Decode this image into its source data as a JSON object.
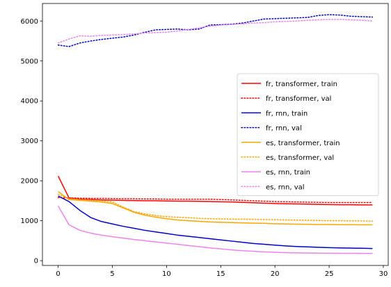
{
  "chart_data": {
    "type": "line",
    "title": "",
    "xlabel": "",
    "ylabel": "",
    "xlim": [
      -1.45,
      30.45
    ],
    "ylim": [
      -120,
      6440
    ],
    "xticks": [
      0,
      5,
      10,
      15,
      20,
      25,
      30
    ],
    "yticks": [
      0,
      1000,
      2000,
      3000,
      4000,
      5000,
      6000
    ],
    "legend_position": "center-right",
    "x": [
      0,
      1,
      2,
      3,
      4,
      5,
      6,
      7,
      8,
      9,
      10,
      11,
      12,
      13,
      14,
      15,
      16,
      17,
      18,
      19,
      20,
      21,
      22,
      23,
      24,
      25,
      26,
      27,
      28,
      29
    ],
    "series": [
      {
        "name": "fr, transformer, train",
        "color": "#ff0000",
        "style": "solid",
        "values": [
          2120,
          1570,
          1540,
          1530,
          1520,
          1515,
          1510,
          1505,
          1500,
          1500,
          1495,
          1490,
          1490,
          1485,
          1480,
          1475,
          1470,
          1460,
          1450,
          1440,
          1430,
          1425,
          1420,
          1415,
          1410,
          1405,
          1400,
          1400,
          1395,
          1395
        ]
      },
      {
        "name": "fr, transformer, val",
        "color": "#ff0000",
        "style": "dotted",
        "values": [
          1580,
          1570,
          1565,
          1560,
          1560,
          1555,
          1550,
          1550,
          1545,
          1545,
          1540,
          1540,
          1540,
          1540,
          1540,
          1530,
          1520,
          1510,
          1500,
          1490,
          1480,
          1475,
          1470,
          1465,
          1460,
          1455,
          1455,
          1455,
          1455,
          1455
        ]
      },
      {
        "name": "fr, rnn, train",
        "color": "#0000cc",
        "style": "solid",
        "values": [
          1620,
          1480,
          1260,
          1080,
          980,
          920,
          860,
          810,
          760,
          720,
          680,
          640,
          610,
          580,
          550,
          520,
          490,
          460,
          430,
          410,
          390,
          370,
          355,
          345,
          335,
          325,
          320,
          315,
          310,
          305
        ]
      },
      {
        "name": "fr, rnn, val",
        "color": "#0000cc",
        "style": "dotted",
        "values": [
          5400,
          5360,
          5450,
          5500,
          5540,
          5570,
          5600,
          5650,
          5720,
          5780,
          5790,
          5800,
          5780,
          5800,
          5900,
          5910,
          5920,
          5950,
          6000,
          6050,
          6060,
          6070,
          6080,
          6090,
          6140,
          6160,
          6150,
          6120,
          6110,
          6100
        ]
      },
      {
        "name": "es, transformer, train",
        "color": "#ffa500",
        "style": "solid",
        "values": [
          1730,
          1530,
          1510,
          1490,
          1470,
          1430,
          1320,
          1210,
          1140,
          1090,
          1050,
          1020,
          1000,
          985,
          970,
          960,
          955,
          945,
          940,
          935,
          925,
          920,
          915,
          910,
          905,
          905,
          900,
          900,
          898,
          898
        ]
      },
      {
        "name": "es, transformer, val",
        "color": "#ffa500",
        "style": "dotted",
        "values": [
          1660,
          1550,
          1530,
          1510,
          1500,
          1470,
          1340,
          1230,
          1170,
          1130,
          1100,
          1090,
          1075,
          1060,
          1050,
          1045,
          1040,
          1040,
          1035,
          1030,
          1025,
          1020,
          1015,
          1010,
          1005,
          1000,
          1000,
          995,
          995,
          990
        ]
      },
      {
        "name": "es, rnn, train",
        "color": "#ee82ee",
        "style": "solid",
        "values": [
          1370,
          900,
          760,
          690,
          640,
          600,
          565,
          530,
          500,
          470,
          440,
          410,
          380,
          350,
          320,
          295,
          270,
          250,
          235,
          220,
          210,
          200,
          195,
          190,
          188,
          186,
          185,
          184,
          183,
          182
        ]
      },
      {
        "name": "es, rnn, val",
        "color": "#ee82ee",
        "style": "dotted",
        "values": [
          5450,
          5550,
          5630,
          5620,
          5640,
          5650,
          5660,
          5680,
          5700,
          5710,
          5720,
          5750,
          5790,
          5830,
          5870,
          5900,
          5920,
          5930,
          5950,
          5960,
          5980,
          5990,
          6000,
          6020,
          6030,
          6040,
          6040,
          6030,
          6020,
          6000
        ]
      }
    ]
  }
}
